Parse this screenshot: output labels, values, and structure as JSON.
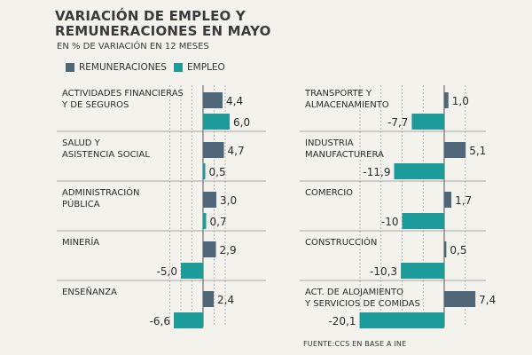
{
  "title_line1": "VARIACIÓN DE EMPLEO Y",
  "title_line2": "REMUNERACIONES EN MAYO",
  "subtitle": "EN % DE VARIACIÓN EN 12 MESES",
  "source": "FUENTE:CCS EN BASE A INE",
  "colors": {
    "remuneraciones": "#4f6779",
    "empleo": "#1d9b9b"
  },
  "chart_data": {
    "type": "bar",
    "orientation": "horizontal",
    "title": "VARIACIÓN DE EMPLEO Y REMUNERACIONES EN MAYO",
    "subtitle": "EN % DE VARIACIÓN EN 12 MESES",
    "legend": [
      "REMUNERACIONES",
      "EMPLEO"
    ],
    "series_names": [
      "Remuneraciones",
      "Empleo"
    ],
    "categories": [
      {
        "label": [
          "ACTIVIDADES FINANCIERAS",
          "Y DE SEGUROS"
        ],
        "remuneraciones": 4.4,
        "empleo": 6.0,
        "rem_label": "4,4",
        "emp_label": "6,0"
      },
      {
        "label": [
          "SALUD Y",
          "ASISTENCIA SOCIAL"
        ],
        "remuneraciones": 4.7,
        "empleo": 0.5,
        "rem_label": "4,7",
        "emp_label": "0,5"
      },
      {
        "label": [
          "ADMINISTRACIÓN",
          "PÚBLICA"
        ],
        "remuneraciones": 3.0,
        "empleo": 0.7,
        "rem_label": "3,0",
        "emp_label": "0,7"
      },
      {
        "label": [
          "MINERÍA"
        ],
        "remuneraciones": 2.9,
        "empleo": -5.0,
        "rem_label": "2,9",
        "emp_label": "-5,0"
      },
      {
        "label": [
          "ENSEÑANZA"
        ],
        "remuneraciones": 2.4,
        "empleo": -6.6,
        "rem_label": "2,4",
        "emp_label": "-6,6"
      },
      {
        "label": [
          "TRANSPORTE Y",
          "ALMACENAMIENTO"
        ],
        "remuneraciones": 1.0,
        "empleo": -7.7,
        "rem_label": "1,0",
        "emp_label": "-7,7"
      },
      {
        "label": [
          "INDUSTRIA",
          "MANUFACTURERA"
        ],
        "remuneraciones": 5.1,
        "empleo": -11.9,
        "rem_label": "5,1",
        "emp_label": "-11,9"
      },
      {
        "label": [
          "COMERCIO"
        ],
        "remuneraciones": 1.7,
        "empleo": -10.0,
        "rem_label": "1,7",
        "emp_label": "-10"
      },
      {
        "label": [
          "CONSTRUCCIÓN"
        ],
        "remuneraciones": 0.5,
        "empleo": -10.3,
        "rem_label": "0,5",
        "emp_label": "-10,3"
      },
      {
        "label": [
          "ACT. DE ALOJAMIENTO",
          "Y SERVICIOS DE COMIDAS"
        ],
        "remuneraciones": 7.4,
        "empleo": -20.1,
        "rem_label": "7,4",
        "emp_label": "-20,1"
      }
    ],
    "panels": [
      {
        "name": "left",
        "category_indices": [
          0,
          1,
          2,
          3,
          4
        ],
        "gridlines": [
          -7.5,
          -5,
          -2.5,
          0,
          2.5,
          5
        ]
      },
      {
        "name": "right",
        "category_indices": [
          5,
          6,
          7,
          8,
          9
        ],
        "gridlines": [
          -20,
          -15,
          -10,
          -5,
          0,
          5
        ]
      }
    ],
    "grid": true
  }
}
